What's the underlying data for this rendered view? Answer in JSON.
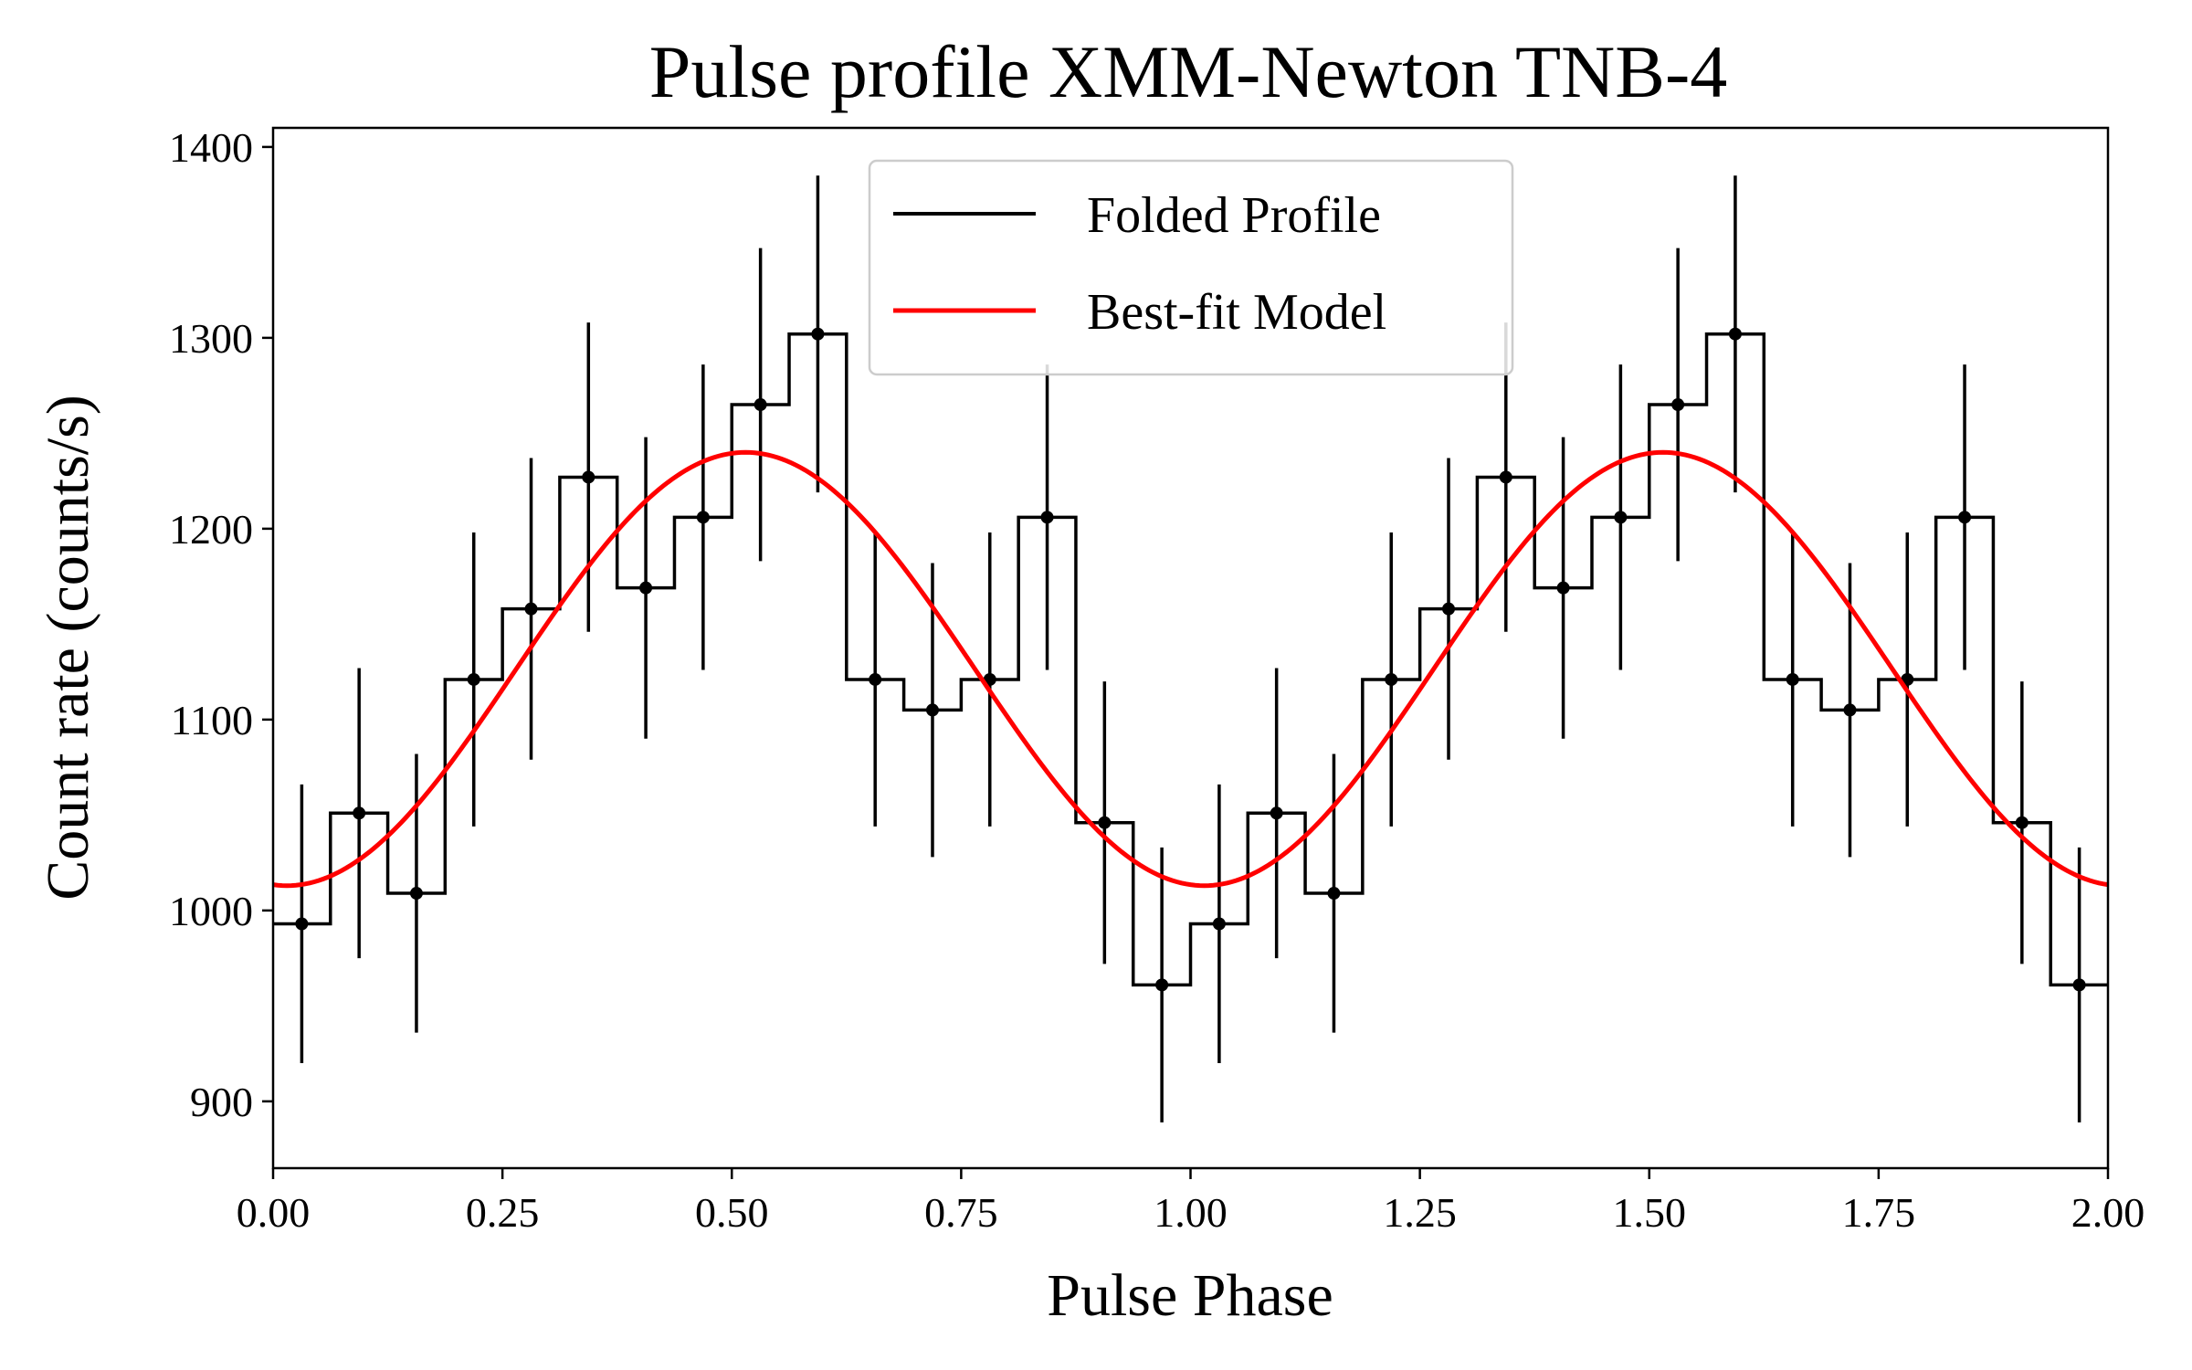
{
  "chart_data": {
    "type": "line",
    "title": "Pulse profile XMM-Newton TNB-4",
    "xlabel": "Pulse Phase",
    "ylabel": "Count rate (counts/s)",
    "xlim": [
      0.0,
      2.0
    ],
    "ylim": [
      865,
      1410
    ],
    "x_ticks": [
      "0.00",
      "0.25",
      "0.50",
      "0.75",
      "1.00",
      "1.25",
      "1.50",
      "1.75",
      "2.00"
    ],
    "y_ticks": [
      "900",
      "1000",
      "1100",
      "1200",
      "1300",
      "1400"
    ],
    "legend": {
      "position": "upper-center",
      "entries": [
        "Folded Profile",
        "Best-fit Model"
      ]
    },
    "series": [
      {
        "name": "Folded Profile",
        "style": "steps-mid with error bars",
        "color": "#000000",
        "x": [
          0.03125,
          0.09375,
          0.15625,
          0.21875,
          0.28125,
          0.34375,
          0.40625,
          0.46875,
          0.53125,
          0.59375,
          0.65625,
          0.71875,
          0.78125,
          0.84375,
          0.90625,
          0.96875,
          1.03125,
          1.09375,
          1.15625,
          1.21875,
          1.28125,
          1.34375,
          1.40625,
          1.46875,
          1.53125,
          1.59375,
          1.65625,
          1.71875,
          1.78125,
          1.84375,
          1.90625,
          1.96875
        ],
        "values": [
          993,
          1051,
          1009,
          1121,
          1158,
          1227,
          1169,
          1206,
          1265,
          1302,
          1121,
          1105,
          1121,
          1206,
          1046,
          961,
          993,
          1051,
          1009,
          1121,
          1158,
          1227,
          1169,
          1206,
          1265,
          1302,
          1121,
          1105,
          1121,
          1206,
          1046,
          961
        ],
        "errors": [
          73,
          76,
          73,
          77,
          79,
          81,
          79,
          80,
          82,
          83,
          77,
          77,
          77,
          80,
          74,
          72,
          73,
          76,
          73,
          77,
          79,
          81,
          79,
          80,
          82,
          83,
          77,
          77,
          77,
          80,
          74,
          72
        ]
      },
      {
        "name": "Best-fit Model",
        "style": "sinusoid",
        "color": "#ff0000",
        "model": {
          "mean": 1126.5,
          "amplitude": 113.5,
          "phase_of_max": 0.515,
          "period": 1.0
        }
      }
    ]
  }
}
